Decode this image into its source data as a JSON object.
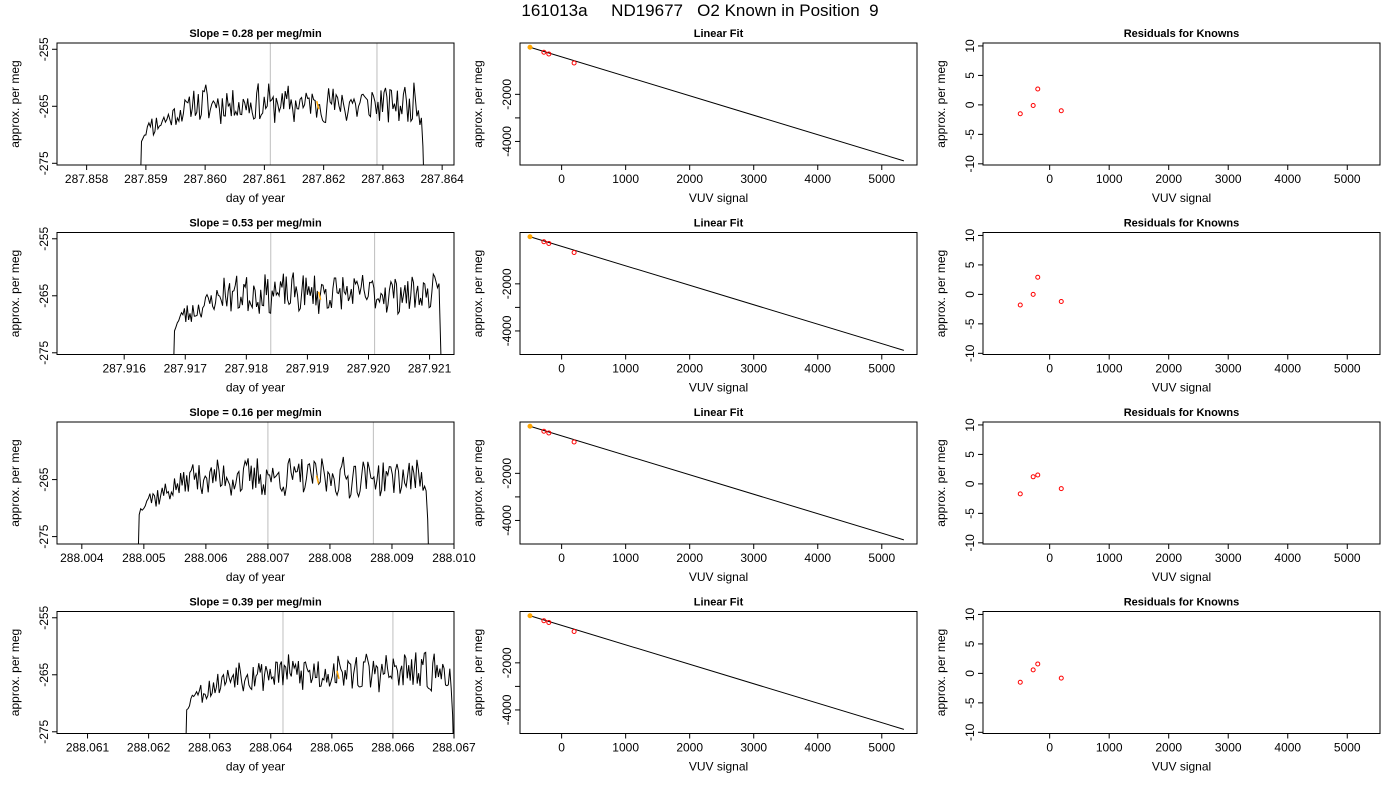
{
  "page": {
    "title": "161013a     ND19677   O2 Known in Position  9"
  },
  "chart_data": [
    {
      "type": "line",
      "panel": "trace",
      "row": 1,
      "title": "Slope =  0.28  per meg/min",
      "xlabel": "day of year",
      "ylabel": "approx. per meg",
      "xlim": [
        287.8575,
        287.8642
      ],
      "ylim": [
        -275.3,
        -253.9
      ],
      "xticks": [
        287.858,
        287.859,
        287.86,
        287.861,
        287.862,
        287.863,
        287.864
      ],
      "xtick_labels": [
        "287.858",
        "287.859",
        "287.860",
        "287.861",
        "287.862",
        "287.863",
        "287.864"
      ],
      "yticks": [
        -255,
        -265,
        -275
      ],
      "ytick_labels": [
        "-255",
        "-265",
        "-275"
      ],
      "trace": {
        "x_start": 287.8589,
        "x_end": 287.8637,
        "seed": 11
      },
      "vlines": [
        287.8611,
        287.8629
      ],
      "highlight": {
        "x": 287.8619,
        "y": -264.8
      }
    },
    {
      "type": "scatter",
      "panel": "fit",
      "row": 1,
      "title": "Linear Fit",
      "xlabel": "VUV signal",
      "ylabel": "approx. per meg",
      "xlim": [
        -650,
        5550
      ],
      "ylim": [
        -5000,
        180
      ],
      "xticks": [
        0,
        1000,
        2000,
        3000,
        4000,
        5000
      ],
      "xtick_labels": [
        "0",
        "1000",
        "2000",
        "3000",
        "4000",
        "5000"
      ],
      "yticks": [
        -2000,
        -3000,
        -4000
      ],
      "ytick_labels": [
        "-2000",
        "",
        "-4000"
      ],
      "points": [
        [
          -494,
          0
        ],
        [
          -277,
          -213
        ],
        [
          -200,
          -285
        ],
        [
          195,
          -671
        ]
      ],
      "highlight_index": 0,
      "fit_line": [
        [
          -494,
          0
        ],
        [
          5345,
          -4825
        ]
      ]
    },
    {
      "type": "scatter",
      "panel": "residuals",
      "row": 1,
      "title": "Residuals for Knowns",
      "xlabel": "VUV signal",
      "ylabel": "approx. per meg",
      "xlim": [
        -1120,
        5550
      ],
      "ylim": [
        -10.2,
        10.5
      ],
      "xticks": [
        0,
        1000,
        2000,
        3000,
        4000,
        5000
      ],
      "xtick_labels": [
        "0",
        "1000",
        "2000",
        "3000",
        "4000",
        "5000"
      ],
      "yticks": [
        10,
        5,
        0,
        -5,
        -10
      ],
      "ytick_labels": [
        "10",
        "5",
        "0",
        "-5",
        "-10"
      ],
      "points": [
        [
          -494,
          -1.5
        ],
        [
          -277,
          -0.1
        ],
        [
          -200,
          2.7
        ],
        [
          195,
          -1.0
        ]
      ]
    },
    {
      "type": "line",
      "panel": "trace",
      "row": 2,
      "title": "Slope =  0.53  per meg/min",
      "xlabel": "day of year",
      "ylabel": "approx. per meg",
      "xlim": [
        287.9149,
        287.9214
      ],
      "ylim": [
        -275.3,
        -253.9
      ],
      "xticks": [
        287.916,
        287.917,
        287.918,
        287.919,
        287.92,
        287.921
      ],
      "xtick_labels": [
        "287.916",
        "287.917",
        "287.918",
        "287.919",
        "287.920",
        "287.921"
      ],
      "yticks": [
        -255,
        -265,
        -275
      ],
      "ytick_labels": [
        "-255",
        "-265",
        "-275"
      ],
      "trace": {
        "x_start": 287.9168,
        "x_end": 287.9212,
        "seed": 23
      },
      "vlines": [
        287.9184,
        287.9201
      ],
      "highlight": {
        "x": 287.9192,
        "y": -265.0
      }
    },
    {
      "type": "scatter",
      "panel": "fit",
      "row": 2,
      "title": "Linear Fit",
      "xlabel": "VUV signal",
      "ylabel": "approx. per meg",
      "xlim": [
        -650,
        5550
      ],
      "ylim": [
        -5000,
        180
      ],
      "xticks": [
        0,
        1000,
        2000,
        3000,
        4000,
        5000
      ],
      "xtick_labels": [
        "0",
        "1000",
        "2000",
        "3000",
        "4000",
        "5000"
      ],
      "yticks": [
        -2000,
        -3000,
        -4000
      ],
      "ytick_labels": [
        "-2000",
        "",
        "-4000"
      ],
      "points": [
        [
          -494,
          0
        ],
        [
          -277,
          -213
        ],
        [
          -200,
          -285
        ],
        [
          195,
          -671
        ]
      ],
      "highlight_index": 0,
      "fit_line": [
        [
          -494,
          0
        ],
        [
          5345,
          -4825
        ]
      ]
    },
    {
      "type": "scatter",
      "panel": "residuals",
      "row": 2,
      "title": "Residuals for Knowns",
      "xlabel": "VUV signal",
      "ylabel": "approx. per meg",
      "xlim": [
        -1120,
        5550
      ],
      "ylim": [
        -10.2,
        10.5
      ],
      "xticks": [
        0,
        1000,
        2000,
        3000,
        4000,
        5000
      ],
      "xtick_labels": [
        "0",
        "1000",
        "2000",
        "3000",
        "4000",
        "5000"
      ],
      "yticks": [
        10,
        5,
        0,
        -5,
        -10
      ],
      "ytick_labels": [
        "10",
        "5",
        "0",
        "-5",
        "-10"
      ],
      "points": [
        [
          -494,
          -1.8
        ],
        [
          -277,
          0.0
        ],
        [
          -200,
          2.9
        ],
        [
          195,
          -1.2
        ]
      ]
    },
    {
      "type": "line",
      "panel": "trace",
      "row": 3,
      "title": "Slope =  0.16  per meg/min",
      "xlabel": "day of year",
      "ylabel": "approx. per meg",
      "xlim": [
        288.0036,
        288.01
      ],
      "ylim": [
        -276.3,
        -254.9
      ],
      "xticks": [
        288.004,
        288.005,
        288.006,
        288.007,
        288.008,
        288.009,
        288.01
      ],
      "xtick_labels": [
        "288.004",
        "288.005",
        "288.006",
        "288.007",
        "288.008",
        "288.009",
        "288.010"
      ],
      "yticks": [
        -265,
        -275
      ],
      "ytick_labels": [
        "-265",
        "-275"
      ],
      "trace": {
        "x_start": 288.0049,
        "x_end": 288.0096,
        "seed": 37
      },
      "vlines": [
        288.007,
        288.0087
      ],
      "highlight": {
        "x": 288.0078,
        "y": -265.0
      }
    },
    {
      "type": "scatter",
      "panel": "fit",
      "row": 3,
      "title": "Linear Fit",
      "xlabel": "VUV signal",
      "ylabel": "approx. per meg",
      "xlim": [
        -650,
        5550
      ],
      "ylim": [
        -5000,
        180
      ],
      "xticks": [
        0,
        1000,
        2000,
        3000,
        4000,
        5000
      ],
      "xtick_labels": [
        "0",
        "1000",
        "2000",
        "3000",
        "4000",
        "5000"
      ],
      "yticks": [
        -2000,
        -3000,
        -4000
      ],
      "ytick_labels": [
        "-2000",
        "",
        "-4000"
      ],
      "points": [
        [
          -494,
          0
        ],
        [
          -277,
          -213
        ],
        [
          -200,
          -285
        ],
        [
          195,
          -671
        ]
      ],
      "highlight_index": 0,
      "fit_line": [
        [
          -494,
          0
        ],
        [
          5345,
          -4825
        ]
      ]
    },
    {
      "type": "scatter",
      "panel": "residuals",
      "row": 3,
      "title": "Residuals for Knowns",
      "xlabel": "VUV signal",
      "ylabel": "approx. per meg",
      "xlim": [
        -1120,
        5550
      ],
      "ylim": [
        -10.2,
        10.5
      ],
      "xticks": [
        0,
        1000,
        2000,
        3000,
        4000,
        5000
      ],
      "xtick_labels": [
        "0",
        "1000",
        "2000",
        "3000",
        "4000",
        "5000"
      ],
      "yticks": [
        10,
        5,
        0,
        -5,
        -10
      ],
      "ytick_labels": [
        "10",
        "5",
        "0",
        "-5",
        "-10"
      ],
      "points": [
        [
          -494,
          -1.7
        ],
        [
          -277,
          1.2
        ],
        [
          -200,
          1.5
        ],
        [
          195,
          -0.8
        ]
      ]
    },
    {
      "type": "line",
      "panel": "trace",
      "row": 4,
      "title": "Slope =  0.39  per meg/min",
      "xlabel": "day of year",
      "ylabel": "approx. per meg",
      "xlim": [
        288.0605,
        288.067
      ],
      "ylim": [
        -275.3,
        -253.9
      ],
      "xticks": [
        288.061,
        288.062,
        288.063,
        288.064,
        288.065,
        288.066,
        288.067
      ],
      "xtick_labels": [
        "288.061",
        "288.062",
        "288.063",
        "288.064",
        "288.065",
        "288.066",
        "288.067"
      ],
      "yticks": [
        -255,
        -265,
        -275
      ],
      "ytick_labels": [
        "-255",
        "-265",
        "-275"
      ],
      "trace": {
        "x_start": 288.0626,
        "x_end": 288.067,
        "seed": 53
      },
      "vlines": [
        288.0642,
        288.066
      ],
      "highlight": {
        "x": 288.0651,
        "y": -265.0
      }
    },
    {
      "type": "scatter",
      "panel": "fit",
      "row": 4,
      "title": "Linear Fit",
      "xlabel": "VUV signal",
      "ylabel": "approx. per meg",
      "xlim": [
        -650,
        5550
      ],
      "ylim": [
        -5000,
        180
      ],
      "xticks": [
        0,
        1000,
        2000,
        3000,
        4000,
        5000
      ],
      "xtick_labels": [
        "0",
        "1000",
        "2000",
        "3000",
        "4000",
        "5000"
      ],
      "yticks": [
        -2000,
        -3000,
        -4000
      ],
      "ytick_labels": [
        "-2000",
        "",
        "-4000"
      ],
      "points": [
        [
          -494,
          0
        ],
        [
          -277,
          -213
        ],
        [
          -200,
          -285
        ],
        [
          195,
          -671
        ]
      ],
      "highlight_index": 0,
      "fit_line": [
        [
          -494,
          0
        ],
        [
          5345,
          -4825
        ]
      ]
    },
    {
      "type": "scatter",
      "panel": "residuals",
      "row": 4,
      "title": "Residuals for Knowns",
      "xlabel": "VUV signal",
      "ylabel": "approx. per meg",
      "xlim": [
        -1120,
        5550
      ],
      "ylim": [
        -10.2,
        10.5
      ],
      "xticks": [
        0,
        1000,
        2000,
        3000,
        4000,
        5000
      ],
      "xtick_labels": [
        "0",
        "1000",
        "2000",
        "3000",
        "4000",
        "5000"
      ],
      "yticks": [
        10,
        5,
        0,
        -5,
        -10
      ],
      "ytick_labels": [
        "10",
        "5",
        "0",
        "-5",
        "-10"
      ],
      "points": [
        [
          -494,
          -1.5
        ],
        [
          -277,
          0.6
        ],
        [
          -200,
          1.6
        ],
        [
          195,
          -0.8
        ]
      ]
    }
  ],
  "colors": {
    "trace": "#000000",
    "fit_line": "#000000",
    "vline": "#bebebe",
    "highlight": "#ffa500",
    "point": "#ff0000",
    "axes": "#000000"
  }
}
